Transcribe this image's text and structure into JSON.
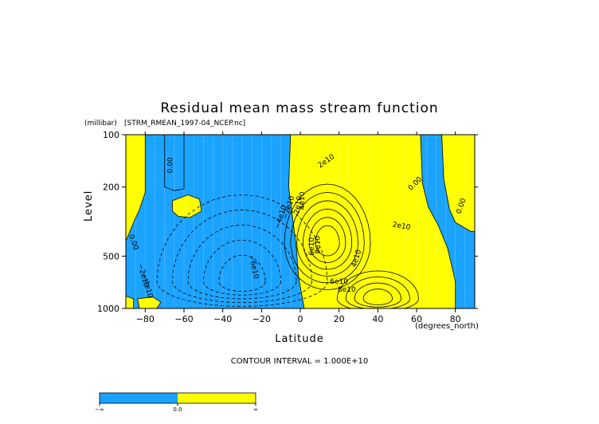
{
  "chart_data": {
    "type": "heatmap",
    "title": "Residual mean mass stream function",
    "subtitle": "[STRM_RMEAN_1997-04_NCEP.nc]",
    "y_units": "(millibar)",
    "xlabel": "Latitude",
    "x_units": "(degrees_north)",
    "ylabel": "Level",
    "xlim": [
      -90,
      90
    ],
    "ylim": [
      1000,
      100
    ],
    "y_scale": "log",
    "x_ticks": [
      -80,
      -60,
      -40,
      -20,
      0,
      20,
      40,
      60,
      80
    ],
    "x_tick_labels": [
      "−80",
      "−60",
      "−40",
      "−20",
      "0",
      "20",
      "40",
      "60",
      "80"
    ],
    "y_ticks": [
      100,
      200,
      500,
      1000
    ],
    "y_tick_labels": [
      "100",
      "200",
      "500",
      "1000"
    ],
    "contour_interval_text": "CONTOUR INTERVAL = 1.000E+10",
    "colors": {
      "negative": "#1aa3ff",
      "positive": "#ffff00",
      "line": "#000000",
      "grid": "#ffffff"
    },
    "regions": [
      {
        "sign": "negative",
        "points": [
          [
            -90,
            410
          ],
          [
            -86,
            320
          ],
          [
            -83,
            270
          ],
          [
            -80,
            215
          ],
          [
            -80,
            100
          ],
          [
            -5,
            100
          ],
          [
            -6,
            200
          ],
          [
            -4,
            300
          ],
          [
            -2,
            450
          ],
          [
            -1,
            650
          ],
          [
            2,
            1000
          ],
          [
            -80,
            1000
          ],
          [
            -86,
            1000
          ],
          [
            -86,
            880
          ],
          [
            -90,
            850
          ]
        ]
      },
      {
        "sign": "negative",
        "points": [
          [
            -70,
            100
          ],
          [
            -60,
            100
          ],
          [
            -60,
            205
          ],
          [
            -65,
            210
          ],
          [
            -70,
            200
          ]
        ]
      },
      {
        "sign": "negative",
        "points": [
          [
            62,
            100
          ],
          [
            73,
            100
          ],
          [
            74,
            180
          ],
          [
            77,
            270
          ],
          [
            80,
            320
          ],
          [
            88,
            360
          ],
          [
            90,
            360
          ],
          [
            90,
            1000
          ],
          [
            80,
            1000
          ],
          [
            80,
            700
          ],
          [
            76,
            450
          ],
          [
            71,
            330
          ],
          [
            66,
            260
          ],
          [
            63,
            190
          ]
        ]
      }
    ],
    "holes": [
      {
        "sign": "positive",
        "points": [
          [
            -66,
            240
          ],
          [
            -58,
            222
          ],
          [
            -52,
            235
          ],
          [
            -51,
            275
          ],
          [
            -57,
            300
          ],
          [
            -63,
            295
          ],
          [
            -66,
            275
          ]
        ]
      },
      {
        "sign": "positive",
        "points": [
          [
            -84,
            880
          ],
          [
            -76,
            860
          ],
          [
            -72,
            920
          ],
          [
            -74,
            1000
          ],
          [
            -83,
            1000
          ]
        ]
      }
    ],
    "contour_labels": [
      {
        "text": "0.00",
        "x": -66,
        "y": 150,
        "angle": 90
      },
      {
        "text": "0.00",
        "x": -87,
        "y": 420,
        "angle": -70
      },
      {
        "text": "−2e10",
        "x": -82,
        "y": 650,
        "angle": -75
      },
      {
        "text": "−4e10",
        "x": -80,
        "y": 750,
        "angle": -75
      },
      {
        "text": "−6e10",
        "x": -25,
        "y": 580,
        "angle": -78
      },
      {
        "text": "−4e10",
        "x": -9,
        "y": 300,
        "angle": 72
      },
      {
        "text": "−2e10",
        "x": -5,
        "y": 265,
        "angle": 72
      },
      {
        "text": "2e10",
        "x": 0,
        "y": 255,
        "angle": 80
      },
      {
        "text": "4e10",
        "x": 2,
        "y": 240,
        "angle": 90
      },
      {
        "text": "2e10",
        "x": 14,
        "y": 145,
        "angle": 35
      },
      {
        "text": "6e10",
        "x": 7,
        "y": 440,
        "angle": 90
      },
      {
        "text": "8e10",
        "x": 10,
        "y": 430,
        "angle": 90
      },
      {
        "text": "4e10",
        "x": 30,
        "y": 520,
        "angle": 72
      },
      {
        "text": "0.00",
        "x": 60,
        "y": 195,
        "angle": 45
      },
      {
        "text": "0.00",
        "x": 84,
        "y": 260,
        "angle": 70
      },
      {
        "text": "2e10",
        "x": 52,
        "y": 345,
        "angle": -10
      },
      {
        "text": "6e10",
        "x": 20,
        "y": 720,
        "angle": 0
      },
      {
        "text": "8e10",
        "x": 24,
        "y": 800,
        "angle": 0
      }
    ],
    "colorbar": {
      "labels": [
        "−∞",
        "0.0",
        "∞"
      ],
      "colors": [
        "#1aa3ff",
        "#ffff00"
      ]
    }
  }
}
